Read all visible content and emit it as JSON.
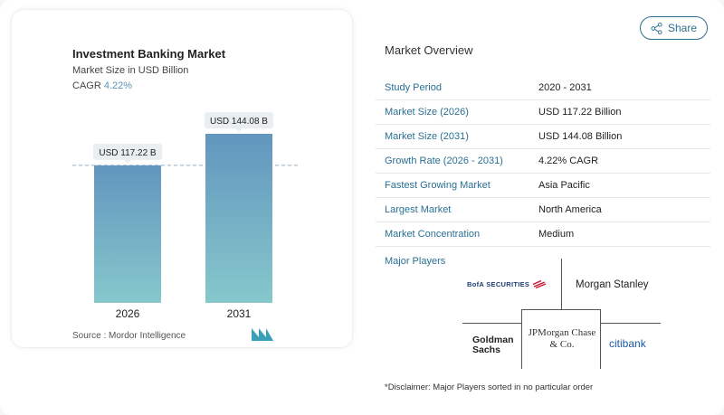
{
  "share_label": "Share",
  "chart_data": {
    "type": "bar",
    "title": "Investment Banking Market",
    "subtitle": "Market Size in USD Billion",
    "cagr_label": "CAGR",
    "cagr_value": "4.22%",
    "categories": [
      "2026",
      "2031"
    ],
    "values": [
      117.22,
      144.08
    ],
    "data_labels": [
      "USD 117.22 B",
      "USD 144.08 B"
    ],
    "ylim": [
      0,
      144.08
    ],
    "color": "#6a9ac0",
    "color_bottom": "#86c8cc",
    "source": "Source :  Mordor Intelligence"
  },
  "overview": {
    "title": "Market Overview",
    "rows": [
      {
        "k": "Study Period",
        "v": "2020 - 2031"
      },
      {
        "k": "Market Size (2026)",
        "v": "USD 117.22 Billion"
      },
      {
        "k": "Market Size (2031)",
        "v": "USD 144.08 Billion"
      },
      {
        "k": "Growth Rate (2026 - 2031)",
        "v": "4.22% CAGR"
      },
      {
        "k": "Fastest Growing Market",
        "v": "Asia Pacific"
      },
      {
        "k": "Largest Market",
        "v": "North America"
      },
      {
        "k": "Market Concentration",
        "v": "Medium"
      }
    ],
    "major_players_label": "Major Players",
    "players": [
      "BofA SECURITIES",
      "Morgan Stanley",
      "Goldman Sachs",
      "JPMorgan Chase & Co.",
      "citibank"
    ],
    "disclaimer": "*Disclaimer: Major Players sorted in no particular order"
  }
}
